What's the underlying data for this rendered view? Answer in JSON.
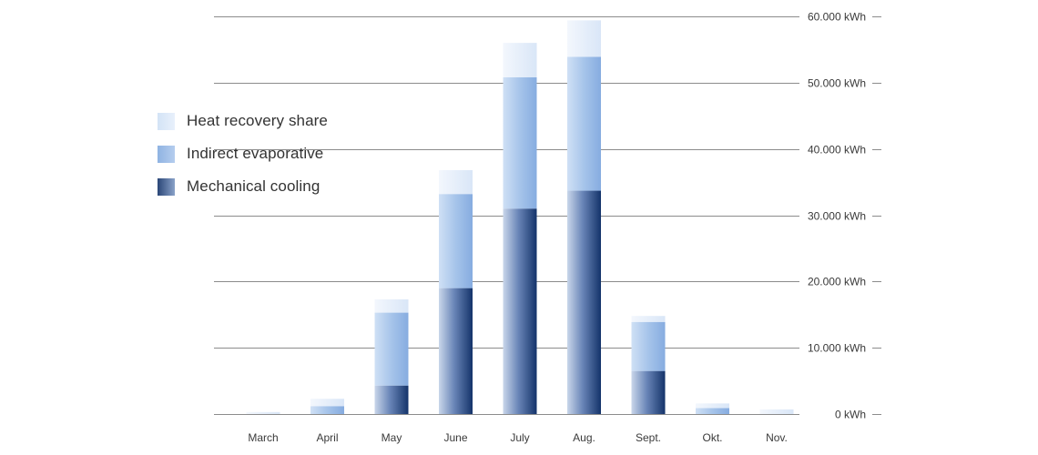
{
  "chart_data": {
    "type": "bar",
    "stacked": true,
    "categories": [
      "March",
      "April",
      "May",
      "June",
      "July",
      "Aug.",
      "Sept.",
      "Okt.",
      "Nov."
    ],
    "series": [
      {
        "name": "Mechanical cooling",
        "color": "#1f3c6e",
        "values": [
          0,
          0,
          4300,
          19000,
          31000,
          33700,
          6500,
          0,
          0
        ]
      },
      {
        "name": "Indirect evaporative",
        "color": "#9dbde6",
        "values": [
          0,
          1200,
          11000,
          14200,
          19800,
          20200,
          7400,
          900,
          0
        ]
      },
      {
        "name": "Heat recovery share",
        "color": "#dce8f7",
        "values": [
          300,
          1100,
          2000,
          3600,
          5200,
          5500,
          900,
          700,
          700
        ]
      }
    ],
    "y_ticks": [
      "60.000 kWh",
      "50.000 kWh",
      "40.000 kWh",
      "30.000 kWh",
      "20.000 kWh",
      "10.000 kWh",
      "0 kWh"
    ],
    "y_tick_values": [
      60000,
      50000,
      40000,
      30000,
      20000,
      10000,
      0
    ],
    "ylim": [
      0,
      60000
    ],
    "y_axis_position": "right",
    "grid": true,
    "legend_position": "left",
    "title": "",
    "xlabel": "",
    "ylabel": ""
  },
  "legend": {
    "items": [
      {
        "label": "Heat recovery share"
      },
      {
        "label": "Indirect evaporative"
      },
      {
        "label": "Mechanical cooling"
      }
    ]
  }
}
